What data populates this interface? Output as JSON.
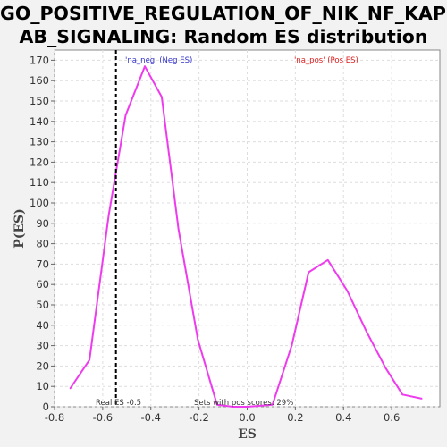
{
  "chart_data": {
    "type": "line",
    "title_line1": "GO_POSITIVE_REGULATION_OF_NIK_NF_KAPP",
    "title_line2": "AB_SIGNALING: Random ES distribution",
    "xlabel": "ES",
    "ylabel": "P(ES)",
    "xlim": [
      -0.8,
      0.8
    ],
    "ylim": [
      0,
      175
    ],
    "x_ticks": [
      -0.8,
      -0.6,
      -0.4,
      -0.2,
      0.0,
      0.2,
      0.4,
      0.6
    ],
    "x_tick_labels": [
      "-0.8",
      "-0.6",
      "-0.4",
      "-0.2",
      "0.0",
      "0.2",
      "0.4",
      "0.6"
    ],
    "y_ticks": [
      0,
      10,
      20,
      30,
      40,
      50,
      60,
      70,
      80,
      90,
      100,
      110,
      120,
      130,
      140,
      150,
      160,
      170
    ],
    "y_tick_labels": [
      "0",
      "10",
      "20",
      "30",
      "40",
      "50",
      "60",
      "70",
      "80",
      "90",
      "100",
      "110",
      "120",
      "130",
      "140",
      "150",
      "160",
      "170"
    ],
    "grid": true,
    "series": [
      {
        "name": "'na_neg' (Neg ES)",
        "color": "#ee3bee",
        "legend_color": "#3333cc",
        "x": [
          -0.735,
          -0.655,
          -0.575,
          -0.505,
          -0.425,
          -0.355,
          -0.285,
          -0.205,
          -0.125,
          -0.06,
          0.0
        ],
        "y": [
          9,
          23,
          94,
          143,
          167,
          152,
          87,
          33,
          1,
          0,
          0
        ]
      },
      {
        "name": "'na_pos' (Pos ES)",
        "color": "#ee3bee",
        "legend_color": "#dd2222",
        "x": [
          0.0,
          0.105,
          0.185,
          0.255,
          0.335,
          0.415,
          0.495,
          0.575,
          0.645,
          0.725
        ],
        "y": [
          0,
          1,
          30,
          66,
          72,
          57,
          37,
          19,
          6,
          4
        ]
      }
    ],
    "real_es": {
      "value": -0.545,
      "label": "Real ES -0.5"
    },
    "annotation": "Sets with pos scores: 29%"
  }
}
